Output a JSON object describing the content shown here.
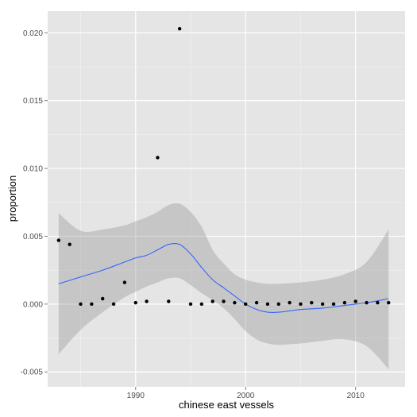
{
  "chart_data": {
    "type": "scatter",
    "xlabel": "chinese east vessels",
    "ylabel": "proportion",
    "xlim": [
      1982,
      2014.5
    ],
    "ylim": [
      -0.0061,
      0.0216
    ],
    "x_ticks": [
      1990,
      2000,
      2010
    ],
    "x_tick_labels": [
      "1990",
      "2000",
      "2010"
    ],
    "y_ticks": [
      -0.005,
      0.0,
      0.005,
      0.01,
      0.015,
      0.02
    ],
    "y_tick_labels": [
      "-0.005",
      "0.000",
      "0.005",
      "0.010",
      "0.015",
      "0.020"
    ],
    "grid": true,
    "legend": "none",
    "points": {
      "x": [
        1983,
        1984,
        1985,
        1986,
        1987,
        1988,
        1989,
        1990,
        1991,
        1992,
        1993,
        1994,
        1995,
        1996,
        1997,
        1998,
        1999,
        2000,
        2001,
        2002,
        2003,
        2004,
        2005,
        2006,
        2007,
        2008,
        2009,
        2010,
        2011,
        2012,
        2013
      ],
      "y": [
        0.0047,
        0.0044,
        0.0,
        0.0,
        0.0004,
        0.0,
        0.0016,
        0.0001,
        0.0002,
        0.0108,
        0.0002,
        0.0203,
        0.0,
        0.0,
        0.0002,
        0.0002,
        0.0001,
        0.0,
        0.0001,
        0.0,
        0.0,
        0.0001,
        0.0,
        0.0001,
        0.0,
        0.0,
        0.0001,
        0.0002,
        0.0001,
        0.0001,
        0.0001
      ]
    },
    "smooth": {
      "x": [
        1983,
        1985,
        1987,
        1989,
        1990,
        1991,
        1992,
        1993,
        1994,
        1995,
        1996,
        1997,
        1998,
        1999,
        2000,
        2001,
        2002,
        2003,
        2005,
        2007,
        2009,
        2011,
        2013
      ],
      "fit": [
        0.0015,
        0.002,
        0.0025,
        0.0031,
        0.0034,
        0.0036,
        0.004,
        0.0044,
        0.0044,
        0.0037,
        0.0027,
        0.0018,
        0.0012,
        0.0006,
        0.0,
        -0.0004,
        -0.0006,
        -0.0006,
        -0.0004,
        -0.0003,
        -0.0001,
        0.0001,
        0.0004
      ],
      "lower": [
        -0.0037,
        -0.0019,
        -0.0006,
        0.0005,
        0.0009,
        0.0013,
        0.0016,
        0.0019,
        0.0019,
        0.0014,
        0.0008,
        0.0003,
        -0.0003,
        -0.0011,
        -0.002,
        -0.0026,
        -0.0029,
        -0.003,
        -0.0029,
        -0.0027,
        -0.0026,
        -0.0031,
        -0.0048
      ],
      "upper": [
        0.0067,
        0.0054,
        0.0055,
        0.0058,
        0.0061,
        0.0064,
        0.0068,
        0.0073,
        0.0074,
        0.0068,
        0.0057,
        0.004,
        0.003,
        0.0022,
        0.0018,
        0.0016,
        0.0015,
        0.0015,
        0.0016,
        0.0018,
        0.0022,
        0.0031,
        0.0055
      ]
    },
    "colors": {
      "panel": "#e5e5e5",
      "grid_major": "#ffffff",
      "grid_minor": "#f2f2f2",
      "point": "#000000",
      "line": "#3366ff",
      "ribbon": "#999999"
    }
  }
}
